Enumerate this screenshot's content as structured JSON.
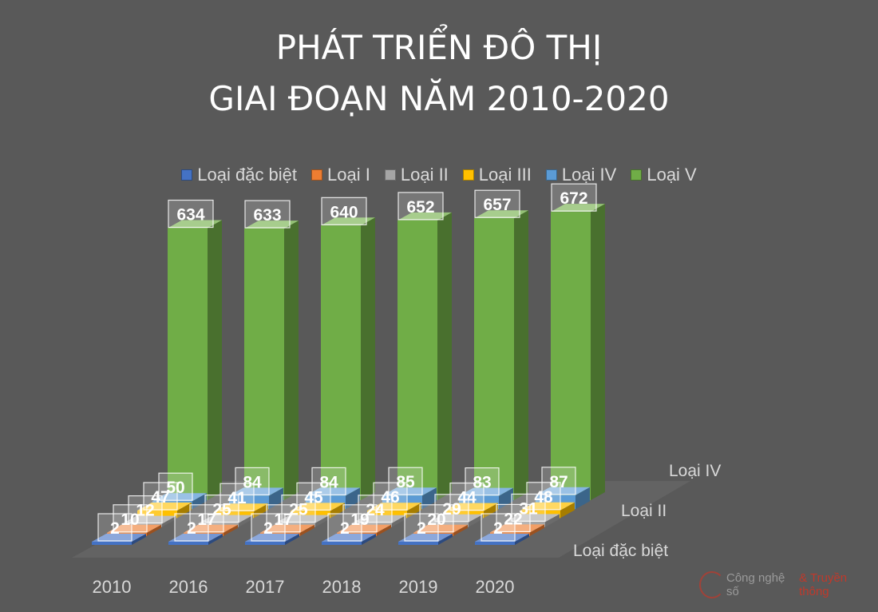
{
  "title_lines": [
    "PHÁT TRIỂN ĐÔ THỊ",
    "GIAI ĐOẠN NĂM 2010-2020"
  ],
  "watermark": {
    "text_a": "Công nghệ số",
    "text_b": "& Truyền thông"
  },
  "chart_data": {
    "type": "bar",
    "subtype": "3d-column",
    "title": "PHÁT TRIỂN ĐÔ THỊ GIAI ĐOẠN NĂM 2010-2020",
    "categories": [
      "2010",
      "2016",
      "2017",
      "2018",
      "2019",
      "2020"
    ],
    "series": [
      {
        "name": "Loại đặc biệt",
        "color": "#4472c4",
        "values": [
          2,
          2,
          2,
          2,
          2,
          2
        ]
      },
      {
        "name": "Loại I",
        "color": "#ed7d31",
        "values": [
          10,
          17,
          17,
          19,
          20,
          22
        ]
      },
      {
        "name": "Loại II",
        "color": "#a5a5a5",
        "values": [
          12,
          25,
          25,
          24,
          29,
          31
        ]
      },
      {
        "name": "Loại III",
        "color": "#ffc000",
        "values": [
          47,
          41,
          45,
          46,
          44,
          48
        ]
      },
      {
        "name": "Loại IV",
        "color": "#5b9bd5",
        "values": [
          50,
          84,
          84,
          85,
          83,
          87
        ]
      },
      {
        "name": "Loại V",
        "color": "#70ad47",
        "values": [
          634,
          633,
          640,
          652,
          657,
          672
        ]
      }
    ],
    "depth_axis_labels": [
      "Loại đặc biệt",
      "Loại II",
      "Loại IV"
    ],
    "legend_position": "top",
    "data_labels": true,
    "grid": false
  }
}
